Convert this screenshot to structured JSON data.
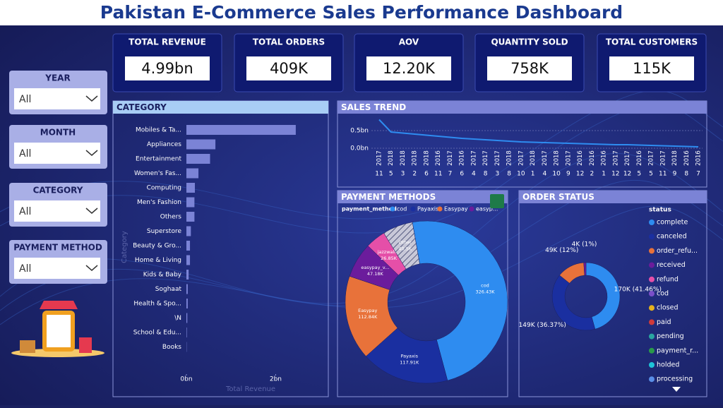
{
  "header": {
    "title": "Pakistan E-Commerce Sales Performance Dashboard"
  },
  "kpis": [
    {
      "label": "TOTAL REVENUE",
      "value": "4.99bn"
    },
    {
      "label": "TOTAL ORDERS",
      "value": "409K"
    },
    {
      "label": "AOV",
      "value": "12.20K"
    },
    {
      "label": "QUANTITY SOLD",
      "value": "758K"
    },
    {
      "label": "TOTAL CUSTOMERS",
      "value": "115K"
    }
  ],
  "filters": [
    {
      "label": "YEAR",
      "value": "All"
    },
    {
      "label": "MONTH",
      "value": "All"
    },
    {
      "label": "CATEGORY",
      "value": "All"
    },
    {
      "label": "PAYMENT METHOD",
      "value": "All"
    }
  ],
  "chart_data": [
    {
      "type": "bar",
      "orientation": "horizontal",
      "title": "CATEGORY",
      "categories": [
        "Mobiles & Ta...",
        "Appliances",
        "Entertainment",
        "Women's Fas...",
        "Computing",
        "Men's Fashion",
        "Others",
        "Superstore",
        "Beauty & Gro...",
        "Home & Living",
        "Kids & Baby",
        "Soghaat",
        "Health & Spo...",
        "\\N",
        "School & Edu...",
        "Books"
      ],
      "values": [
        2.45,
        0.65,
        0.53,
        0.27,
        0.19,
        0.18,
        0.18,
        0.1,
        0.08,
        0.08,
        0.05,
        0.03,
        0.03,
        0.02,
        0.01,
        0.005
      ],
      "color": "#7b83d6",
      "xlim": [
        0,
        3.1
      ],
      "xticks": [
        {
          "value": 0,
          "label": "0bn"
        },
        {
          "value": 2,
          "label": "2bn"
        }
      ],
      "x_label": "Total Revenue",
      "y_label": "Category"
    },
    {
      "type": "line",
      "title": "SALES TREND",
      "color": "#2e8cf0",
      "categories": [
        {
          "year": "2017",
          "month": "11"
        },
        {
          "year": "2018",
          "month": "5"
        },
        {
          "year": "2018",
          "month": "3"
        },
        {
          "year": "2018",
          "month": "2"
        },
        {
          "year": "2018",
          "month": "6"
        },
        {
          "year": "2016",
          "month": "11"
        },
        {
          "year": "2017",
          "month": "7"
        },
        {
          "year": "2016",
          "month": "6"
        },
        {
          "year": "2017",
          "month": "4"
        },
        {
          "year": "2017",
          "month": "8"
        },
        {
          "year": "2017",
          "month": "3"
        },
        {
          "year": "2018",
          "month": "8"
        },
        {
          "year": "2017",
          "month": "10"
        },
        {
          "year": "2018",
          "month": "1"
        },
        {
          "year": "2017",
          "month": "4"
        },
        {
          "year": "2018",
          "month": "10"
        },
        {
          "year": "2017",
          "month": "9"
        },
        {
          "year": "2016",
          "month": "12"
        },
        {
          "year": "2016",
          "month": "2"
        },
        {
          "year": "2016",
          "month": "1"
        },
        {
          "year": "2017",
          "month": "12"
        },
        {
          "year": "2017",
          "month": "12"
        },
        {
          "year": "2016",
          "month": "5"
        },
        {
          "year": "2017",
          "month": "5"
        },
        {
          "year": "2017",
          "month": "11"
        },
        {
          "year": "2018",
          "month": "9"
        },
        {
          "year": "2016",
          "month": "8"
        },
        {
          "year": "2016",
          "month": "7"
        }
      ],
      "values": [
        0.81,
        0.46,
        0.43,
        0.4,
        0.37,
        0.34,
        0.31,
        0.28,
        0.26,
        0.24,
        0.22,
        0.2,
        0.18,
        0.17,
        0.16,
        0.15,
        0.14,
        0.13,
        0.12,
        0.11,
        0.1,
        0.1,
        0.09,
        0.08,
        0.07,
        0.06,
        0.05,
        0.04
      ],
      "ylim": [
        0,
        0.9
      ],
      "yticks": [
        {
          "value": 0,
          "label": "0.0bn"
        },
        {
          "value": 0.5,
          "label": "0.5bn"
        }
      ],
      "grid": true
    },
    {
      "type": "donut",
      "title": "PAYMENT METHODS",
      "legend_title": "payment_method",
      "legend": [
        {
          "name": "cod",
          "color": "#2e8cf0"
        },
        {
          "name": "Payaxis",
          "color": "#1a2fa0"
        },
        {
          "name": "Easypay",
          "color": "#e8723a"
        },
        {
          "name": "easyp...",
          "color": "#6b1c9c"
        }
      ],
      "categories": [
        "cod",
        "Payaxis",
        "Easypay",
        "easypay_v...",
        "jazzwallet",
        "Other"
      ],
      "values": [
        326.43,
        117.91,
        112.84,
        47.18,
        26.85,
        40.5
      ],
      "value_labels": [
        "326.43K",
        "117.91K",
        "112.84K",
        "47.18K",
        "26.85K",
        "40.5K"
      ],
      "colors": [
        "#2e8cf0",
        "#1a2fa0",
        "#e8723a",
        "#6b1c9c",
        "#e54fa8",
        "#c8c8d8"
      ]
    },
    {
      "type": "donut",
      "title": "ORDER STATUS",
      "legend_title": "status",
      "legend": [
        {
          "name": "complete",
          "color": "#2e8cf0"
        },
        {
          "name": "canceled",
          "color": "#1a2fa0"
        },
        {
          "name": "order_refu...",
          "color": "#e8723a"
        },
        {
          "name": "received",
          "color": "#6b1c9c"
        },
        {
          "name": "refund",
          "color": "#e54fa8"
        },
        {
          "name": "cod",
          "color": "#7a4fc9"
        },
        {
          "name": "closed",
          "color": "#e5b21e"
        },
        {
          "name": "paid",
          "color": "#d03a3a"
        },
        {
          "name": "pending",
          "color": "#2aa6a0"
        },
        {
          "name": "payment_r...",
          "color": "#2a9a4a"
        },
        {
          "name": "holded",
          "color": "#1ec3d8"
        },
        {
          "name": "processing",
          "color": "#5a8ee6"
        }
      ],
      "categories": [
        "complete",
        "canceled",
        "order_refund",
        "received"
      ],
      "values": [
        170,
        149,
        49,
        4
      ],
      "value_labels": [
        "170K (41.46%)",
        "149K (36.37%)",
        "49K (12%)",
        "4K (1%)"
      ],
      "colors": [
        "#2e8cf0",
        "#1a2fa0",
        "#e8723a",
        "#6b1c9c"
      ]
    }
  ]
}
